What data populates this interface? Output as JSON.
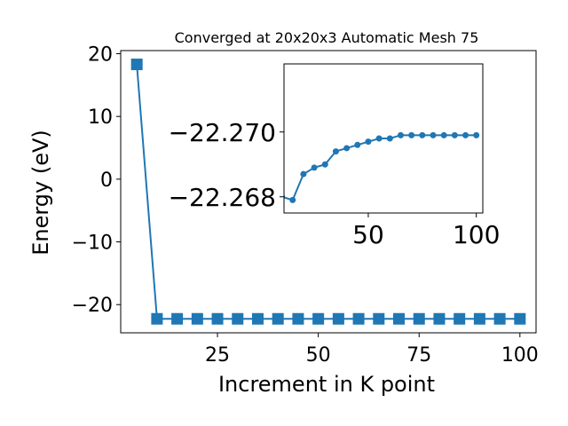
{
  "chart_data": [
    {
      "type": "line",
      "title": "Converged at 20x20x3 Automatic Mesh 75",
      "xlabel": "Increment in K point",
      "ylabel": "Energy (eV)",
      "xlim": [
        1,
        104
      ],
      "ylim": [
        -24.5,
        20.5
      ],
      "x_ticks": [
        25,
        50,
        75,
        100
      ],
      "y_ticks": [
        20,
        10,
        0,
        -10,
        -20
      ],
      "marker": "square",
      "color": "#1f77b4",
      "grid": false,
      "series": [
        {
          "x": [
            5,
            10,
            15,
            20,
            25,
            30,
            35,
            40,
            45,
            50,
            55,
            60,
            65,
            70,
            75,
            80,
            85,
            90,
            95,
            100
          ],
          "y": [
            18.3,
            -22.268,
            -22.2679,
            -22.2687,
            -22.2689,
            -22.269,
            -22.2694,
            -22.2695,
            -22.2696,
            -22.2697,
            -22.2698,
            -22.2698,
            -22.2699,
            -22.2699,
            -22.2699,
            -22.2699,
            -22.2699,
            -22.2699,
            -22.2699,
            -22.2699
          ]
        }
      ]
    },
    {
      "type": "line",
      "title": "",
      "xlabel": "",
      "ylabel": "",
      "xlim": [
        11,
        103
      ],
      "ylim": [
        -22.2675,
        -22.2721
      ],
      "x_ticks": [
        50,
        100
      ],
      "y_ticks": [
        -22.27,
        -22.268
      ],
      "y_tick_labels": [
        "−22.270",
        "−22.268"
      ],
      "marker": "circle",
      "color": "#1f77b4",
      "grid": false,
      "series": [
        {
          "x": [
            10,
            15,
            20,
            25,
            30,
            35,
            40,
            45,
            50,
            55,
            60,
            65,
            70,
            75,
            80,
            85,
            90,
            95,
            100
          ],
          "y": [
            -22.268,
            -22.2679,
            -22.2687,
            -22.2689,
            -22.269,
            -22.2694,
            -22.2695,
            -22.2696,
            -22.2697,
            -22.2698,
            -22.2698,
            -22.2699,
            -22.2699,
            -22.2699,
            -22.2699,
            -22.2699,
            -22.2699,
            -22.2699,
            -22.2699
          ]
        }
      ]
    }
  ]
}
